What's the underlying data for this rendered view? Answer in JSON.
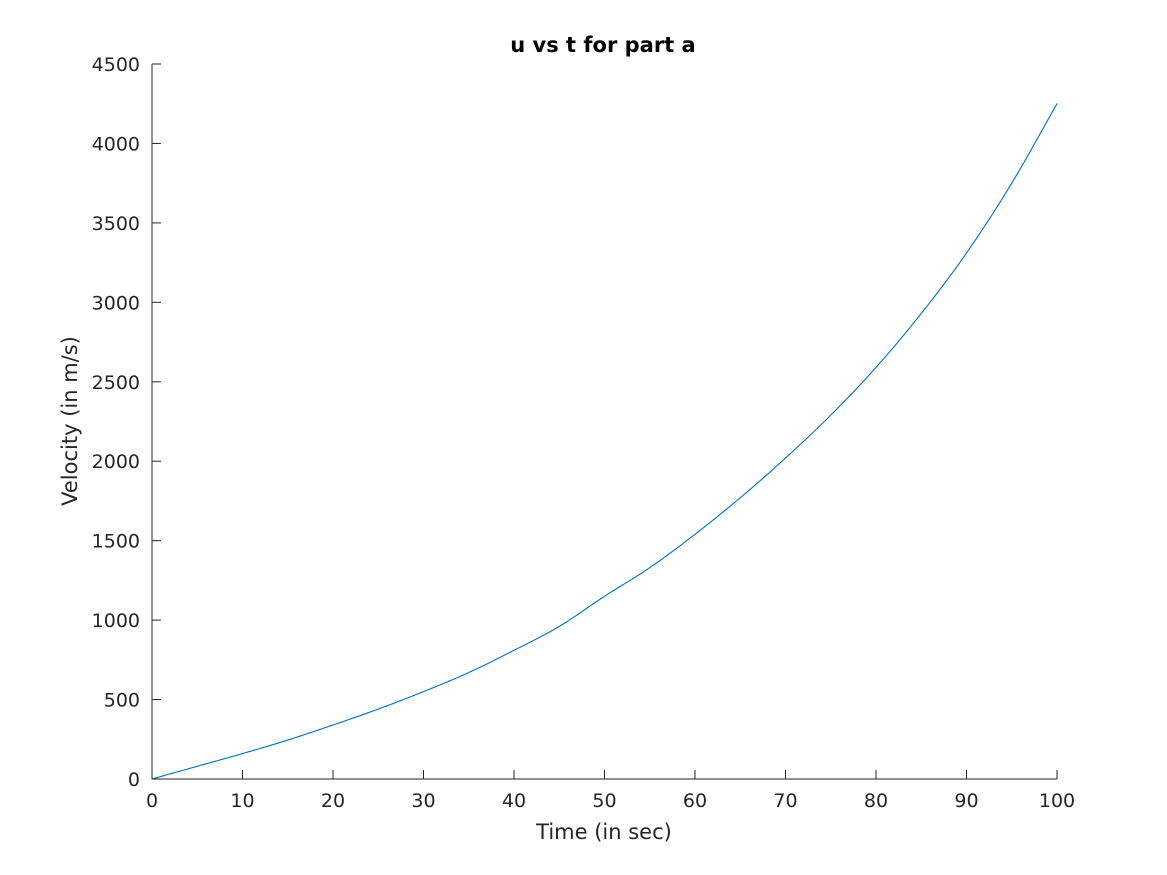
{
  "chart_data": {
    "type": "line",
    "title": "u vs t for part a",
    "xlabel": "Time (in sec)",
    "ylabel": "Velocity (in m/s)",
    "xlim": [
      0,
      100
    ],
    "ylim": [
      0,
      4500
    ],
    "xticks": [
      0,
      10,
      20,
      30,
      40,
      50,
      60,
      70,
      80,
      90,
      100
    ],
    "yticks": [
      0,
      500,
      1000,
      1500,
      2000,
      2500,
      3000,
      3500,
      4000,
      4500
    ],
    "grid": false,
    "legend": "none",
    "colors": {
      "axis": "#262626",
      "title": "#000000",
      "line": "#0072BD",
      "background": "#ffffff"
    },
    "series": [
      {
        "x": [
          0,
          5,
          10,
          15,
          20,
          25,
          30,
          35,
          40,
          45,
          50,
          55,
          60,
          65,
          70,
          75,
          80,
          85,
          90,
          95,
          100
        ],
        "y": [
          0,
          80,
          160,
          245,
          340,
          440,
          550,
          670,
          810,
          960,
          1150,
          1330,
          1540,
          1770,
          2020,
          2290,
          2590,
          2930,
          3310,
          3750,
          4250
        ]
      }
    ]
  }
}
